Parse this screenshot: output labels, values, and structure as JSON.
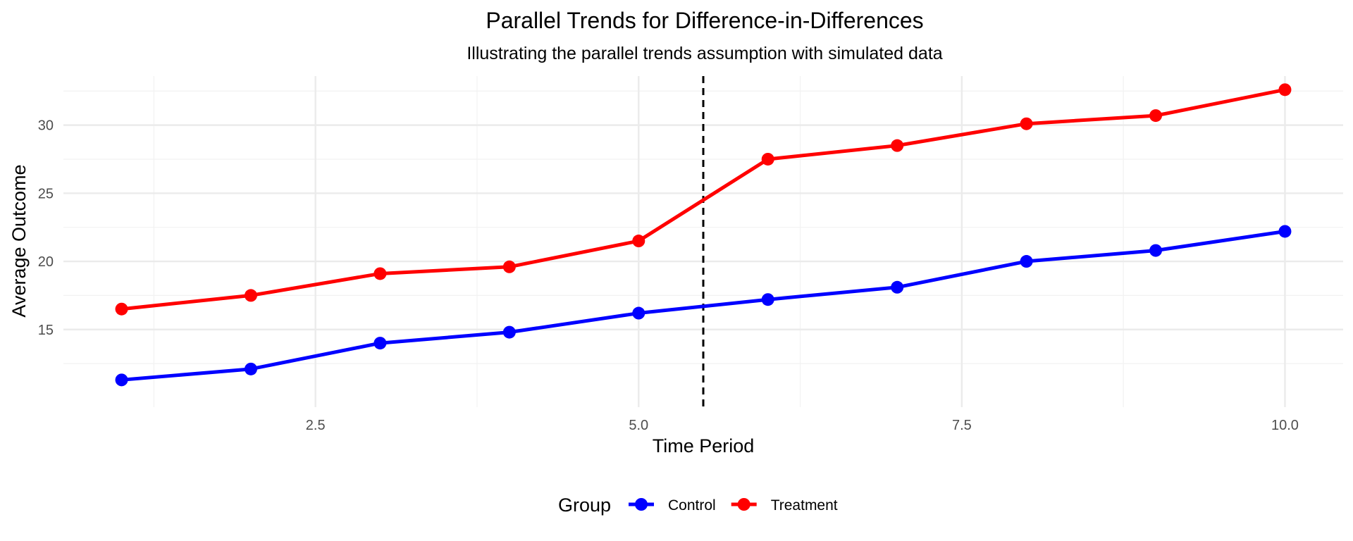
{
  "chart_data": {
    "type": "line",
    "title": "Parallel Trends for Difference-in-Differences",
    "subtitle": "Illustrating the parallel trends assumption with simulated data",
    "xlabel": "Time Period",
    "ylabel": "Average Outcome",
    "x": [
      1,
      2,
      3,
      4,
      5,
      6,
      7,
      8,
      9,
      10
    ],
    "series": [
      {
        "name": "Control",
        "color": "#0000ff",
        "values": [
          11.3,
          12.1,
          14.0,
          14.8,
          16.2,
          17.2,
          18.1,
          20.0,
          20.8,
          22.2
        ]
      },
      {
        "name": "Treatment",
        "color": "#ff0000",
        "values": [
          16.5,
          17.5,
          19.1,
          19.6,
          21.5,
          27.5,
          28.5,
          30.1,
          30.7,
          32.6
        ]
      }
    ],
    "xlim": [
      0.55,
      10.45
    ],
    "ylim": [
      9.3,
      33.6
    ],
    "x_ticks": [
      2.5,
      5.0,
      7.5,
      10.0
    ],
    "x_tick_labels": [
      "2.5",
      "5.0",
      "7.5",
      "10.0"
    ],
    "y_ticks": [
      15,
      20,
      25,
      30
    ],
    "y_tick_labels": [
      "15",
      "20",
      "25",
      "30"
    ],
    "reference_line": {
      "x": 5.5,
      "style": "dashed",
      "color": "#000000"
    },
    "grid": true,
    "legend": {
      "title": "Group",
      "position": "bottom"
    }
  }
}
